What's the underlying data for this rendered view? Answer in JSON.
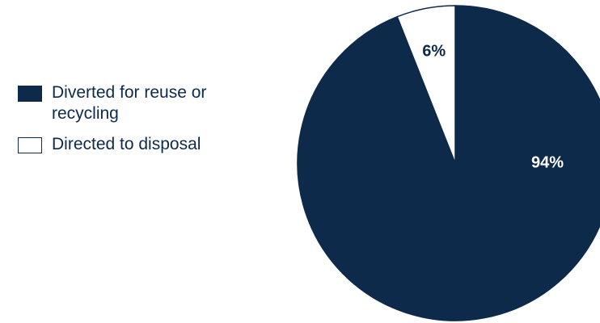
{
  "chart_data": {
    "type": "pie",
    "title": "",
    "legend_position": "left",
    "slices": [
      {
        "label": "Diverted for reuse or recycling",
        "value": 94,
        "display": "94%",
        "color": "#0e2a4a",
        "label_color": "#ffffff"
      },
      {
        "label": "Directed to disposal",
        "value": 6,
        "display": "6%",
        "color": "#ffffff",
        "label_color": "#0e2a4a"
      }
    ]
  }
}
